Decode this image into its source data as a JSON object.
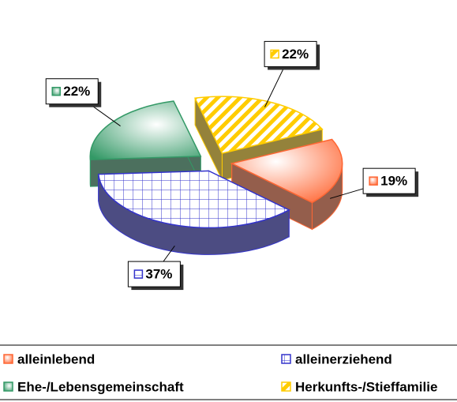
{
  "chart_data": {
    "type": "pie",
    "categories": [
      "alleinlebend",
      "alleinerziehend",
      "Ehe-/Lebensgemeinschaft",
      "Herkunfts-/Stieffamilie"
    ],
    "values": [
      19,
      37,
      22,
      22
    ],
    "value_labels": [
      "19%",
      "37%",
      "22%",
      "22%"
    ],
    "colors": [
      "#ff6633",
      "#3333cc",
      "#339966",
      "#ffcc00"
    ],
    "legend": "bottom"
  }
}
